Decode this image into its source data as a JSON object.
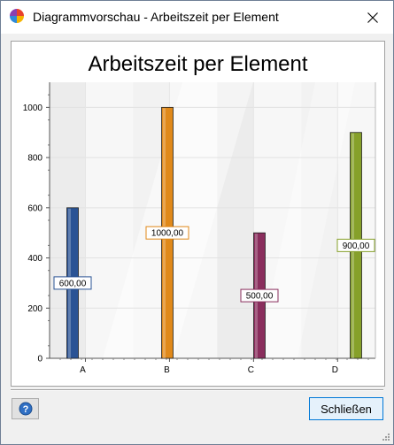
{
  "window": {
    "title": "Diagrammvorschau - Arbeitszeit per Element",
    "app_icon": "chart-sphere-icon",
    "close_icon": "close-icon"
  },
  "chart_data": {
    "type": "bar",
    "title": "Arbeitszeit per Element",
    "categories": [
      "A",
      "B",
      "C",
      "D"
    ],
    "values": [
      600,
      1000,
      500,
      900
    ],
    "data_labels": [
      "600,00",
      "1000,00",
      "500,00",
      "900,00"
    ],
    "colors": [
      "#2a5395",
      "#e0891a",
      "#8a2e5d",
      "#86a02a"
    ],
    "ylim": [
      0,
      1100
    ],
    "yticks": [
      0,
      200,
      400,
      600,
      800,
      1000
    ],
    "ytick_labels": [
      "0",
      "200",
      "400",
      "600",
      "800",
      "1000"
    ],
    "grid": true,
    "legend": "none"
  },
  "footer": {
    "help_icon": "help-icon",
    "close_button_label": "Schließen"
  }
}
